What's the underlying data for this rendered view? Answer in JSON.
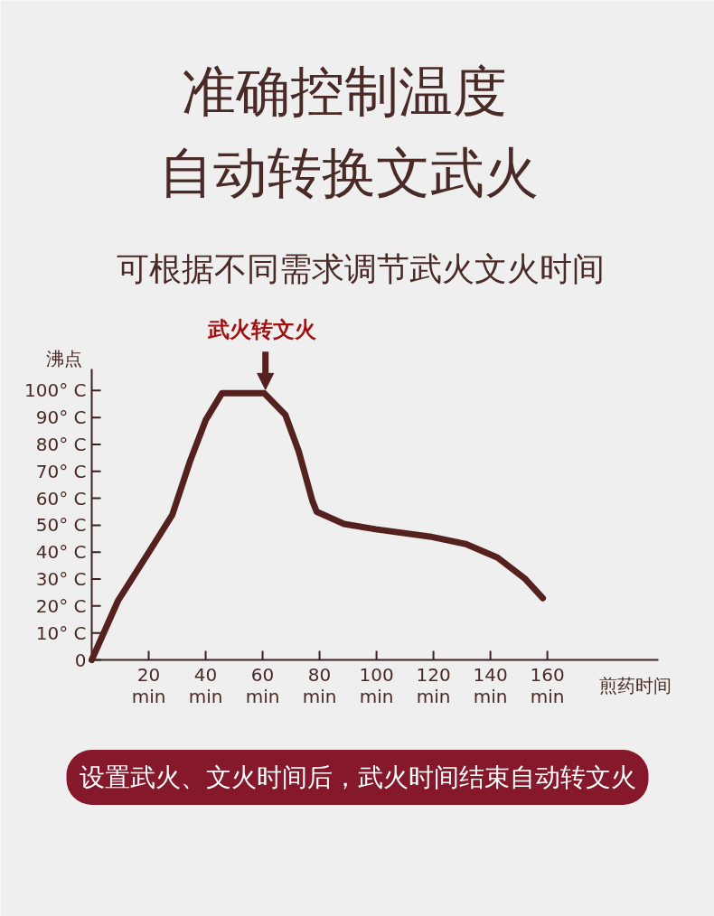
{
  "chart_data": {
    "type": "line",
    "title": "准确控制温度自动转换文武火",
    "subtitle": "可根据不同需求调节武火文火时间",
    "xlabel": "煎药时间",
    "ylabel": "沸点",
    "x": [
      0,
      9.2,
      20.3,
      28.3,
      34.6,
      40,
      45.7,
      60.6,
      68,
      72.7,
      77.5,
      79,
      88.6,
      99.7,
      118.7,
      131.4,
      142.5,
      152,
      158.4
    ],
    "series": [
      {
        "color": "#55211e",
        "values": [
          0,
          21.9,
          40.4,
          53.9,
          74,
          89,
          99,
          99,
          91,
          77.4,
          59,
          55,
          50.5,
          48.5,
          45.8,
          43,
          38,
          30.3,
          22.9
        ]
      }
    ],
    "xlim": [
      0,
      199
    ],
    "ylim": [
      0,
      108
    ],
    "xticks": [
      {
        "value": 20,
        "label": "20\nmin"
      },
      {
        "value": 40,
        "label": "40\nmin"
      },
      {
        "value": 60,
        "label": "60\nmin"
      },
      {
        "value": 80,
        "label": "80\nmin"
      },
      {
        "value": 100,
        "label": "100\nmin"
      },
      {
        "value": 120,
        "label": "120\nmin"
      },
      {
        "value": 140,
        "label": "140\nmin"
      },
      {
        "value": 160,
        "label": "160\nmin"
      }
    ],
    "yticks": [
      0,
      {
        "value": 10,
        "label": "10° C"
      },
      {
        "value": 20,
        "label": "20° C"
      },
      {
        "value": 30,
        "label": "30° C"
      },
      {
        "value": 40,
        "label": "40° C"
      },
      {
        "value": 50,
        "label": "50° C"
      },
      {
        "value": 60,
        "label": "60° C"
      },
      {
        "value": 70,
        "label": "70° C"
      },
      {
        "value": 80,
        "label": "80° C"
      },
      {
        "value": 90,
        "label": "90° C"
      },
      {
        "value": 100,
        "label": "100° C"
      }
    ],
    "annotations": [
      {
        "text": "武火转文火",
        "x": 61,
        "y": 99
      },
      "设置武火、文火时间后，武火时间结束自动转文火"
    ],
    "grid": false,
    "marker": "none",
    "line_style": "solid"
  }
}
